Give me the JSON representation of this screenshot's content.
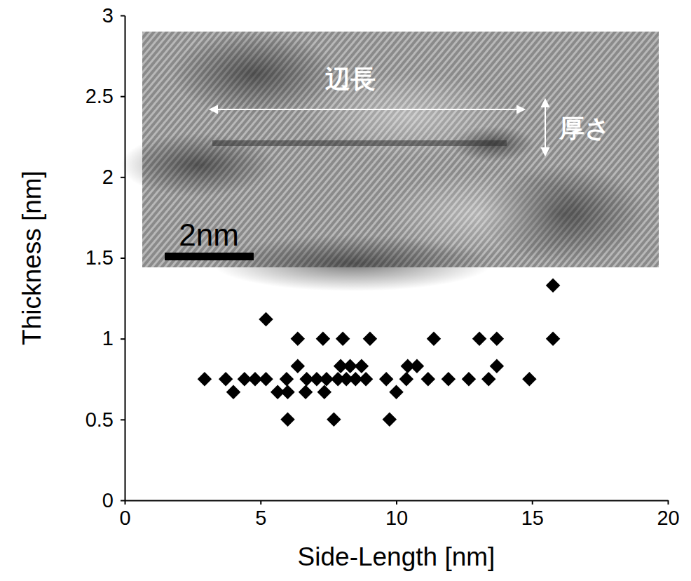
{
  "chart_data": {
    "type": "scatter",
    "x_label": "Side-Length [nm]",
    "y_label": "Thickness [nm]",
    "xlim": [
      0,
      20
    ],
    "ylim": [
      0,
      3
    ],
    "xticks": [
      0,
      5,
      10,
      15,
      20
    ],
    "yticks": [
      0,
      0.5,
      1,
      1.5,
      2,
      2.5,
      3
    ],
    "grid": false,
    "marker": "diamond",
    "color": "#000000",
    "x": [
      2.94,
      3.72,
      4.0,
      4.41,
      4.8,
      5.2,
      5.2,
      5.63,
      5.96,
      6.0,
      6.0,
      6.37,
      6.37,
      6.66,
      6.7,
      7.07,
      7.3,
      7.35,
      7.43,
      7.7,
      7.85,
      8.03,
      7.95,
      8.16,
      8.3,
      8.5,
      8.72,
      8.88,
      9.03,
      9.63,
      9.75,
      10.0,
      10.37,
      10.42,
      10.76,
      11.17,
      11.38,
      11.92,
      12.67,
      13.06,
      13.4,
      13.7,
      13.7,
      14.9,
      15.77,
      15.77
    ],
    "values": [
      0.75,
      0.75,
      0.67,
      0.75,
      0.75,
      0.75,
      1.12,
      0.67,
      0.75,
      0.67,
      0.5,
      0.83,
      1.0,
      0.67,
      0.75,
      0.75,
      1.0,
      0.67,
      0.75,
      0.5,
      0.75,
      1.0,
      0.83,
      0.75,
      0.83,
      0.75,
      0.83,
      0.75,
      1.0,
      0.75,
      0.5,
      0.67,
      0.75,
      0.83,
      0.83,
      0.75,
      1.0,
      0.75,
      0.75,
      1.0,
      0.75,
      0.83,
      1.0,
      0.75,
      1.33,
      1.0
    ],
    "annotations": [
      "辺長",
      "厚さ",
      "2nm"
    ]
  }
}
